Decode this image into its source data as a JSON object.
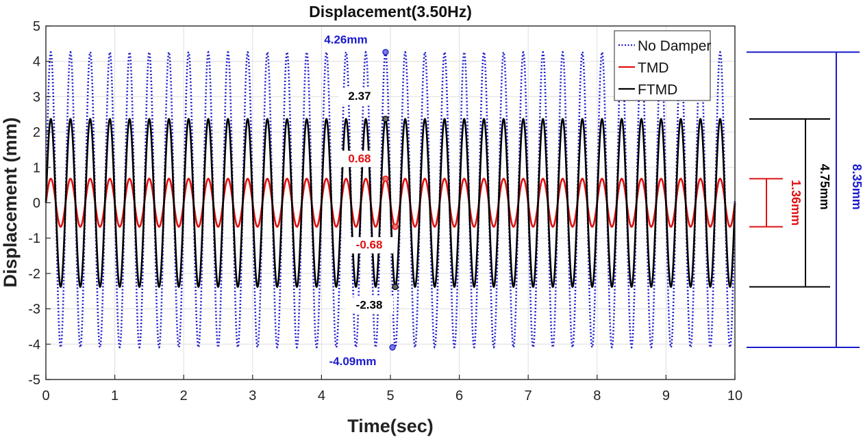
{
  "chart_data": {
    "type": "line",
    "title": "Displacement(3.50Hz)",
    "xlabel": "Time(sec)",
    "ylabel": "Displacement (mm)",
    "xlim": [
      0,
      10
    ],
    "ylim": [
      -5,
      5
    ],
    "x_ticks": [
      "0",
      "1",
      "2",
      "3",
      "4",
      "5",
      "6",
      "7",
      "8",
      "9",
      "10"
    ],
    "y_ticks": [
      "5",
      "4",
      "3",
      "2",
      "1",
      "0",
      "-1",
      "-2",
      "-3",
      "-4",
      "-5"
    ],
    "grid": true,
    "legend_position": "top-right",
    "frequency_hz": 3.5,
    "series": [
      {
        "name": "No Damper",
        "color": "#1a1acc",
        "style": "dotted",
        "max": 4.26,
        "min": -4.09
      },
      {
        "name": "TMD",
        "color": "#e01010",
        "style": "solid",
        "max": 0.68,
        "min": -0.68
      },
      {
        "name": "FTMD",
        "color": "#000000",
        "style": "solid",
        "max": 2.37,
        "min": -2.38
      }
    ],
    "annotations": [
      {
        "text": "4.26mm",
        "x": 4.93,
        "y": 4.26,
        "color": "#1a1acc"
      },
      {
        "text": "-4.09mm",
        "x": 5.03,
        "y": -4.09,
        "color": "#1a1acc"
      },
      {
        "text": "2.37",
        "x": 4.93,
        "y": 2.37,
        "color": "#000000"
      },
      {
        "text": "-2.38",
        "x": 5.07,
        "y": -2.38,
        "color": "#000000"
      },
      {
        "text": "0.68",
        "x": 4.93,
        "y": 0.68,
        "color": "#e01010"
      },
      {
        "text": "-0.68",
        "x": 5.07,
        "y": -0.68,
        "color": "#e01010"
      }
    ],
    "ranges": [
      {
        "text": "1.36mm",
        "from": -0.68,
        "to": 0.68,
        "color": "#e01010"
      },
      {
        "text": "4.75mm",
        "from": -2.38,
        "to": 2.37,
        "color": "#000000"
      },
      {
        "text": "8.35mm",
        "from": -4.09,
        "to": 4.26,
        "color": "#1a1acc"
      }
    ]
  }
}
